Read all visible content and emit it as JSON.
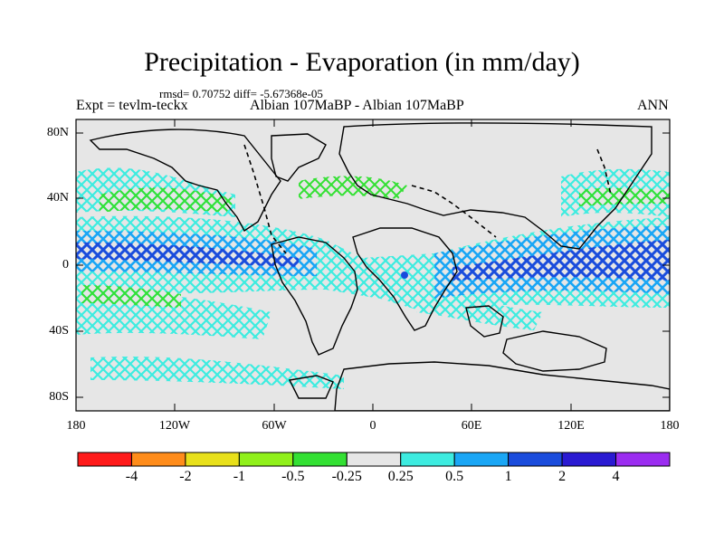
{
  "title": "Precipitation - Evaporation (in mm/day)",
  "stats_line": "rmsd= 0.70752  diff= -5.67368e-05",
  "experiment_label": "Expt = tevlm-teckx",
  "case_label": "Albian   107MaBP - Albian   107MaBP",
  "season_label": "ANN",
  "y_axis_ticks": [
    "80N",
    "40N",
    "0",
    "40S",
    "80S"
  ],
  "x_axis_ticks": [
    "180",
    "120W",
    "60W",
    "0",
    "60E",
    "120E",
    "180"
  ],
  "colorbar": {
    "labels": [
      "-4",
      "-2",
      "-1",
      "-0.5",
      "-0.25",
      "0.25",
      "0.5",
      "1",
      "2",
      "4"
    ],
    "colors": [
      "#ff1a1a",
      "#ff8c1a",
      "#e8e01a",
      "#90f01a",
      "#33e033",
      "#e6e6e6",
      "#3dece0",
      "#1aa6f5",
      "#1a4cdc",
      "#2a1ad2",
      "#9b2cf0"
    ]
  },
  "map_colors": {
    "background": "#e6e6e6",
    "weak_wet": "#3dece0",
    "moderate_wet": "#1aa6f5",
    "strong_wet": "#1a4cdc",
    "dry": "#33e033",
    "very_dry": "#e8e01a"
  }
}
